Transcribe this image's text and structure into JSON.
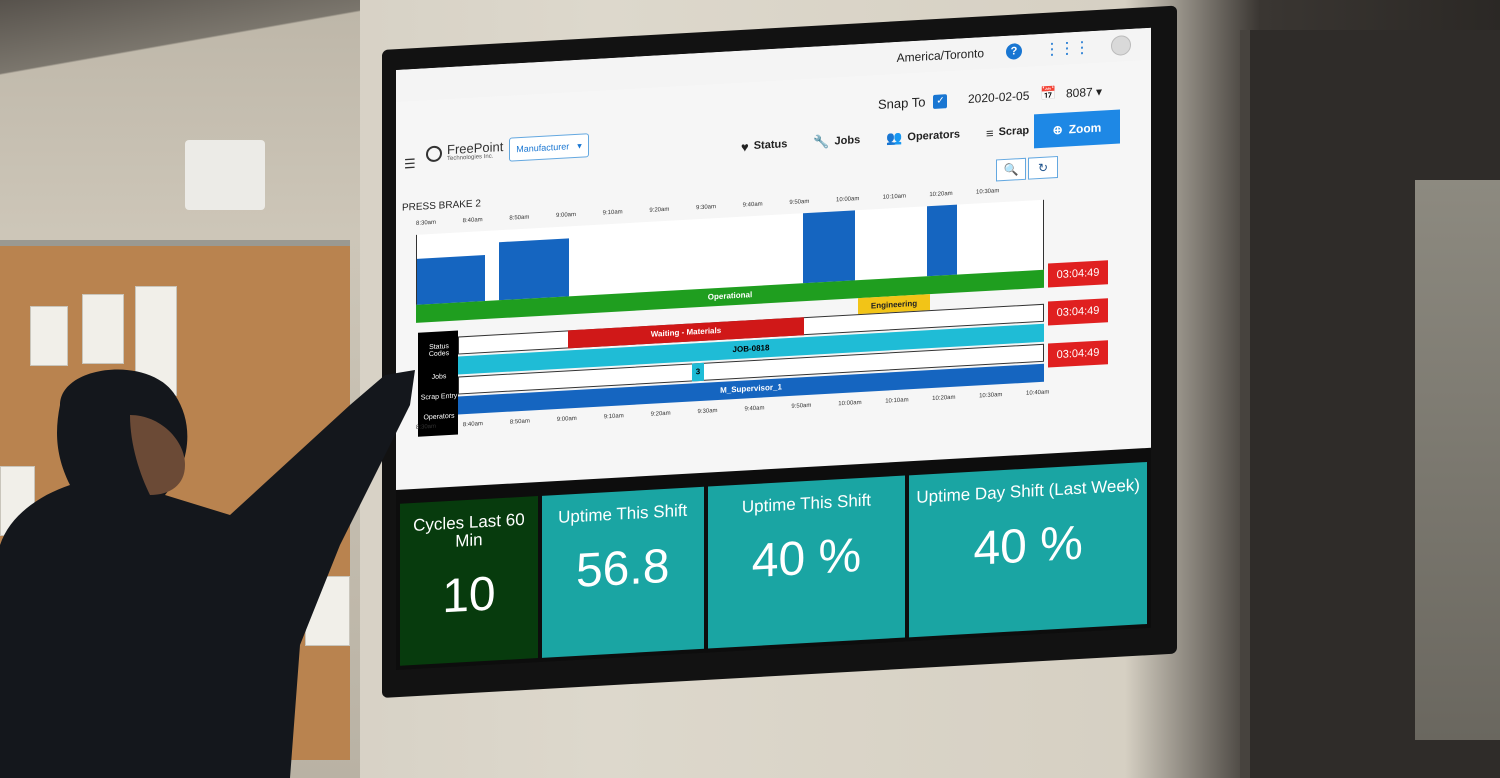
{
  "topbar": {
    "timezone": "America/Toronto",
    "help_icon": "question-icon",
    "apps_icon": "grid-icon"
  },
  "header": {
    "logo_name": "FreePoint",
    "logo_sub": "Technologies Inc.",
    "filter_label": "Manufacturer",
    "snap_to_label": "Snap To",
    "date": "2020-02-05",
    "shift_id": "8087",
    "zoom_label": "Zoom"
  },
  "tabs": [
    {
      "label": "Status",
      "icon": "heartbeat-icon"
    },
    {
      "label": "Jobs",
      "icon": "wrench-icon"
    },
    {
      "label": "Operators",
      "icon": "people-icon"
    },
    {
      "label": "Scrap",
      "icon": "layers-icon"
    }
  ],
  "machine_name": "PRESS BRAKE 2",
  "ticks": [
    "8:30am",
    "8:40am",
    "8:50am",
    "9:00am",
    "9:10am",
    "9:20am",
    "9:30am",
    "9:40am",
    "9:50am",
    "10:00am",
    "10:10am",
    "10:20am",
    "10:30am",
    "10:40am"
  ],
  "top_ticks": [
    "8:30am",
    "8:40am",
    "8:50am",
    "9:00am",
    "9:10am",
    "9:20am",
    "9:30am",
    "9:40am",
    "9:50am",
    "10:00am",
    "10:10am",
    "10:20am",
    "10:30am"
  ],
  "row_labels": [
    "Status Codes",
    "Jobs",
    "Scrap Entry",
    "Operators"
  ],
  "bars": {
    "operational": "Operational",
    "engineering": "Engineering",
    "waiting": "Waiting - Materials",
    "job": "JOB-0818",
    "scrap": "3",
    "operator": "M_Supervisor_1"
  },
  "durations": [
    "03:04:49",
    "03:04:49",
    "03:04:49"
  ],
  "kpis": [
    {
      "title": "Cycles Last 60 Min",
      "value": "10"
    },
    {
      "title": "Uptime This Shift",
      "value": "56.8"
    },
    {
      "title": "Uptime This Shift",
      "value": "40 %"
    },
    {
      "title": "Uptime Day Shift (Last Week)",
      "value": "40 %"
    }
  ],
  "colors": {
    "accent": "#1976d2",
    "operational": "#1f9e1f",
    "waiting": "#d01818",
    "engineering": "#f2c417",
    "job": "#1fbcd6",
    "operator": "#1565c0",
    "kpi": "#1aa5a3",
    "kpi_dark": "#073b0d",
    "duration": "#e02020"
  }
}
